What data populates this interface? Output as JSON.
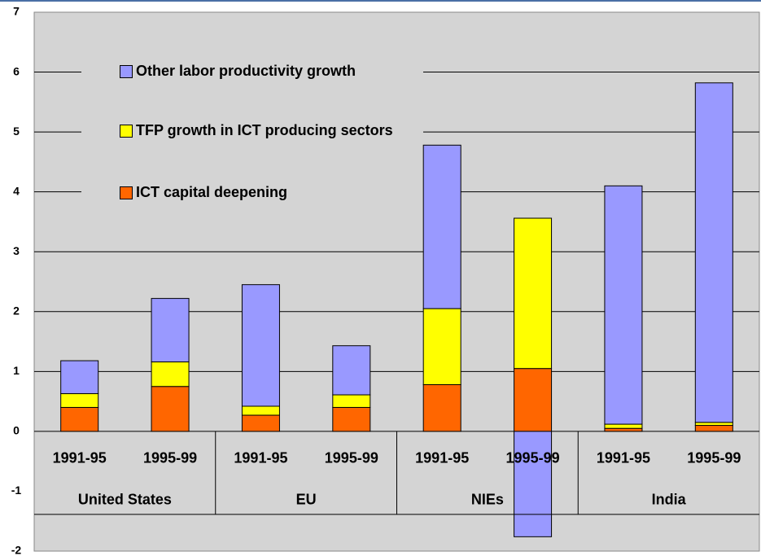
{
  "chart_data": {
    "type": "stacked_bar",
    "categories": [
      "1991-95",
      "1995-99",
      "1991-95",
      "1995-99",
      "1991-95",
      "1995-99",
      "1991-95",
      "1995-99"
    ],
    "groups": [
      "United States",
      "EU",
      "NIEs",
      "India"
    ],
    "series": [
      {
        "name": "ICT capital deepening",
        "color": "#ff6600",
        "values": [
          0.4,
          0.75,
          0.27,
          0.4,
          0.78,
          1.05,
          0.05,
          0.1
        ]
      },
      {
        "name": "TFP growth in ICT producing sectors",
        "color": "#ffff00",
        "values": [
          0.23,
          0.41,
          0.15,
          0.21,
          1.27,
          2.51,
          0.07,
          0.05
        ]
      },
      {
        "name": "Other labor productivity growth",
        "color": "#9999ff",
        "values": [
          0.55,
          1.06,
          2.03,
          0.82,
          2.73,
          -1.76,
          3.98,
          5.67
        ]
      }
    ],
    "ylim": [
      -2,
      7
    ],
    "yticks": [
      -2,
      -1,
      0,
      1,
      2,
      3,
      4,
      5,
      6,
      7
    ],
    "grid": true,
    "legend": "upper left"
  }
}
